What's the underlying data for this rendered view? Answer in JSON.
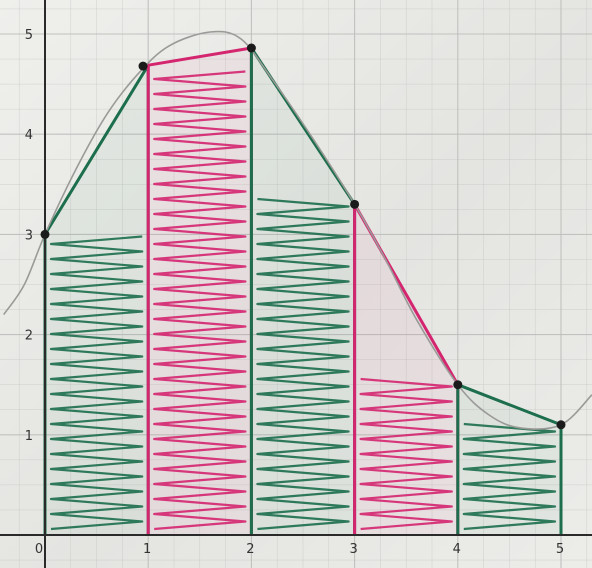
{
  "chart_data": {
    "type": "area",
    "title": "",
    "xlabel": "",
    "ylabel": "",
    "xlim": [
      0,
      5
    ],
    "ylim": [
      0,
      5
    ],
    "grid": true,
    "x_ticks": [
      "0",
      "1",
      "2",
      "3",
      "4",
      "5"
    ],
    "y_ticks": [
      "1",
      "2",
      "3",
      "4",
      "5"
    ],
    "curve": [
      {
        "x": -0.4,
        "y": 2.2
      },
      {
        "x": -0.2,
        "y": 2.5
      },
      {
        "x": 0,
        "y": 3.0
      },
      {
        "x": 0.3,
        "y": 3.65
      },
      {
        "x": 0.6,
        "y": 4.2
      },
      {
        "x": 0.9,
        "y": 4.6
      },
      {
        "x": 1.2,
        "y": 4.88
      },
      {
        "x": 1.6,
        "y": 5.02
      },
      {
        "x": 1.9,
        "y": 4.95
      },
      {
        "x": 2.2,
        "y": 4.55
      },
      {
        "x": 2.6,
        "y": 3.95
      },
      {
        "x": 3.0,
        "y": 3.3
      },
      {
        "x": 3.3,
        "y": 2.75
      },
      {
        "x": 3.6,
        "y": 2.15
      },
      {
        "x": 4.0,
        "y": 1.5
      },
      {
        "x": 4.3,
        "y": 1.2
      },
      {
        "x": 4.6,
        "y": 1.07
      },
      {
        "x": 5.0,
        "y": 1.1
      },
      {
        "x": 5.3,
        "y": 1.4
      }
    ],
    "points": [
      {
        "x": 0,
        "y": 3.0
      },
      {
        "x": 0.95,
        "y": 4.68
      },
      {
        "x": 2.0,
        "y": 4.86
      },
      {
        "x": 3.0,
        "y": 3.3
      },
      {
        "x": 4.0,
        "y": 1.5
      },
      {
        "x": 5.0,
        "y": 1.1
      }
    ],
    "trapezoids": [
      {
        "x0": 0,
        "x1": 1,
        "color": "green"
      },
      {
        "x0": 1,
        "x1": 2,
        "color": "pink"
      },
      {
        "x0": 2,
        "x1": 3,
        "color": "green"
      },
      {
        "x0": 3,
        "x1": 4,
        "color": "pink"
      },
      {
        "x0": 4,
        "x1": 5,
        "color": "green"
      }
    ],
    "colors": {
      "green": "#1c6e4c",
      "pink": "#d4256f",
      "curve": "#9a9a98",
      "grid": "#bdbdbb",
      "axis": "#2a2a2a",
      "point": "#1b1b1b"
    }
  }
}
